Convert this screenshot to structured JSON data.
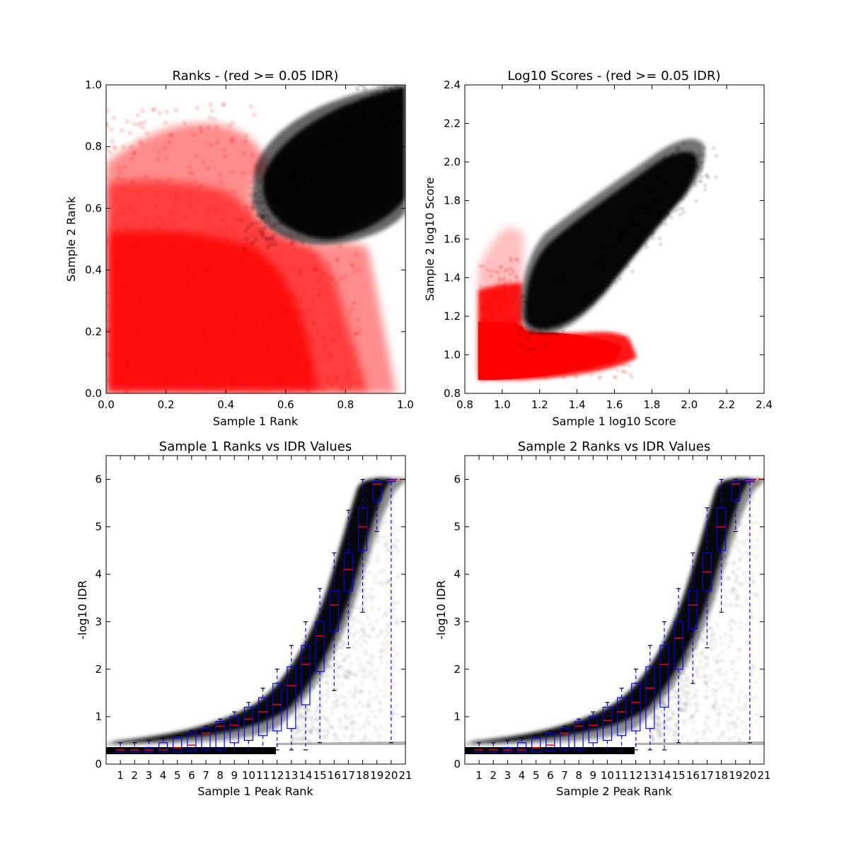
{
  "colors": {
    "red": "#ff0000",
    "black": "#000000",
    "box": "#0000ff",
    "median": "#ff0000"
  },
  "chart_data": [
    {
      "type": "scatter",
      "title": "Ranks - (red >= 0.05 IDR)",
      "xlabel": "Sample 1 Rank",
      "ylabel": "Sample 2 Rank",
      "xlim": [
        0.0,
        1.0
      ],
      "ylim": [
        0.0,
        1.0
      ],
      "xticks": [
        "0.0",
        "0.2",
        "0.4",
        "0.6",
        "0.8",
        "1.0"
      ],
      "yticks": [
        "0.0",
        "0.2",
        "0.4",
        "0.6",
        "0.8",
        "1.0"
      ],
      "series": [
        {
          "color": "red",
          "description_region": "low ranks, IDR >= 0.05",
          "x": [
            0.05,
            0.15,
            0.25,
            0.35,
            0.45,
            0.55,
            0.65,
            0.75
          ],
          "y": [
            0.6,
            0.55,
            0.45,
            0.4,
            0.35,
            0.3,
            0.2,
            0.1
          ]
        },
        {
          "color": "black",
          "x": [
            0.5,
            0.6,
            0.7,
            0.8,
            0.9,
            1.0
          ],
          "y": [
            0.7,
            0.6,
            0.65,
            0.75,
            0.85,
            0.95
          ]
        }
      ],
      "grid": false
    },
    {
      "type": "scatter",
      "title": "Log10 Scores - (red >= 0.05 IDR)",
      "xlabel": "Sample 1 log10 Score",
      "ylabel": "Sample 2 log10 Score",
      "xlim": [
        0.8,
        2.4
      ],
      "ylim": [
        0.8,
        2.4
      ],
      "xticks": [
        "0.8",
        "1.0",
        "1.2",
        "1.4",
        "1.6",
        "1.8",
        "2.0",
        "2.2",
        "2.4"
      ],
      "yticks": [
        "0.8",
        "1.0",
        "1.2",
        "1.4",
        "1.6",
        "1.8",
        "2.0",
        "2.2",
        "2.4"
      ],
      "series": [
        {
          "color": "red",
          "x": [
            0.88,
            0.95,
            1.0,
            1.05,
            1.1,
            1.2,
            1.3
          ],
          "y": [
            0.9,
            1.0,
            1.05,
            1.1,
            1.2,
            0.95,
            0.9
          ]
        },
        {
          "color": "black",
          "x": [
            1.12,
            1.3,
            1.5,
            1.7,
            1.9,
            2.0
          ],
          "y": [
            1.12,
            1.3,
            1.5,
            1.7,
            1.85,
            1.95
          ]
        }
      ],
      "grid": false
    },
    {
      "type": "box",
      "title": "Sample 1 Ranks vs IDR Values",
      "xlabel": "Sample 1 Peak Rank",
      "ylabel": "-log10 IDR",
      "xlim": [
        0,
        21
      ],
      "ylim": [
        0,
        6.5
      ],
      "xticks": [
        "1",
        "2",
        "3",
        "4",
        "5",
        "6",
        "7",
        "8",
        "9",
        "10",
        "11",
        "12",
        "13",
        "14",
        "15",
        "16",
        "17",
        "18",
        "19",
        "20",
        "21"
      ],
      "yticks": [
        "0",
        "1",
        "2",
        "3",
        "4",
        "5",
        "6"
      ],
      "categories": [
        1,
        2,
        3,
        4,
        5,
        6,
        7,
        8,
        9,
        10,
        11,
        12,
        13,
        14,
        15,
        16,
        17,
        18,
        19,
        20
      ],
      "boxes": {
        "q1": [
          0.25,
          0.25,
          0.25,
          0.25,
          0.25,
          0.28,
          0.3,
          0.3,
          0.45,
          0.5,
          0.6,
          0.7,
          0.75,
          1.25,
          1.95,
          2.8,
          3.65,
          4.5,
          5.55,
          5.95
        ],
        "median": [
          0.3,
          0.3,
          0.3,
          0.3,
          0.35,
          0.4,
          0.65,
          0.8,
          0.82,
          0.95,
          1.1,
          1.25,
          1.65,
          2.1,
          2.7,
          3.35,
          4.1,
          5.0,
          5.9,
          5.97
        ],
        "q3": [
          0.3,
          0.3,
          0.35,
          0.45,
          0.55,
          0.65,
          0.75,
          0.9,
          1.0,
          1.2,
          1.4,
          1.7,
          2.05,
          2.5,
          3.0,
          3.65,
          4.45,
          5.4,
          5.95,
          6.0
        ],
        "lo": [
          0.25,
          0.25,
          0.25,
          0.25,
          0.25,
          0.25,
          0.25,
          0.25,
          0.25,
          0.25,
          0.25,
          0.3,
          0.3,
          0.3,
          0.45,
          1.55,
          2.45,
          3.2,
          4.9,
          0.45
        ],
        "hi": [
          0.45,
          0.45,
          0.5,
          0.55,
          0.6,
          0.7,
          0.8,
          0.95,
          1.1,
          1.3,
          1.6,
          2.0,
          2.5,
          3.0,
          3.7,
          4.45,
          5.35,
          6.0,
          6.0,
          6.0
        ]
      },
      "grid": false
    },
    {
      "type": "box",
      "title": "Sample 2 Ranks vs IDR Values",
      "xlabel": "Sample 2 Peak Rank",
      "ylabel": "-log10 IDR",
      "xlim": [
        0,
        21
      ],
      "ylim": [
        0,
        6.5
      ],
      "xticks": [
        "1",
        "2",
        "3",
        "4",
        "5",
        "6",
        "7",
        "8",
        "9",
        "10",
        "11",
        "12",
        "13",
        "14",
        "15",
        "16",
        "17",
        "18",
        "19",
        "20",
        "21"
      ],
      "yticks": [
        "0",
        "1",
        "2",
        "3",
        "4",
        "5",
        "6"
      ],
      "categories": [
        1,
        2,
        3,
        4,
        5,
        6,
        7,
        8,
        9,
        10,
        11,
        12,
        13,
        14,
        15,
        16,
        17,
        18,
        19,
        20
      ],
      "boxes": {
        "q1": [
          0.25,
          0.25,
          0.25,
          0.25,
          0.25,
          0.28,
          0.3,
          0.3,
          0.45,
          0.5,
          0.6,
          0.7,
          0.75,
          1.2,
          2.0,
          2.85,
          3.65,
          4.5,
          5.55,
          5.95
        ],
        "median": [
          0.3,
          0.3,
          0.3,
          0.3,
          0.35,
          0.4,
          0.65,
          0.8,
          0.82,
          0.92,
          1.1,
          1.3,
          1.6,
          2.1,
          2.65,
          3.35,
          4.05,
          5.0,
          5.9,
          5.97
        ],
        "q3": [
          0.3,
          0.3,
          0.35,
          0.45,
          0.55,
          0.65,
          0.75,
          0.9,
          1.0,
          1.2,
          1.4,
          1.7,
          2.05,
          2.5,
          3.0,
          3.65,
          4.45,
          5.4,
          5.95,
          6.0
        ],
        "lo": [
          0.25,
          0.25,
          0.25,
          0.25,
          0.25,
          0.25,
          0.25,
          0.25,
          0.25,
          0.25,
          0.25,
          0.3,
          0.3,
          0.3,
          0.45,
          1.7,
          2.45,
          3.2,
          4.9,
          0.45
        ],
        "hi": [
          0.45,
          0.45,
          0.5,
          0.55,
          0.6,
          0.7,
          0.8,
          0.95,
          1.1,
          1.3,
          1.6,
          2.0,
          2.5,
          3.0,
          3.7,
          4.45,
          5.4,
          6.0,
          6.0,
          6.0
        ]
      },
      "grid": false
    }
  ]
}
